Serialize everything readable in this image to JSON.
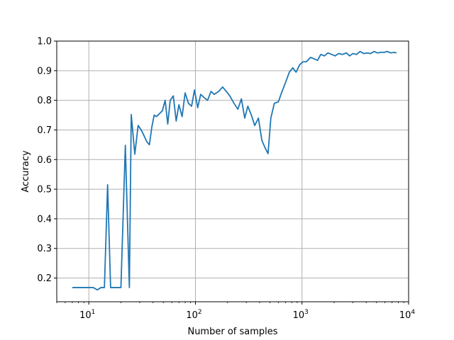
{
  "chart_data": {
    "type": "line",
    "xlabel": "Number of samples",
    "ylabel": "Accuracy",
    "xscale": "log",
    "xlim": [
      5,
      10000
    ],
    "ylim": [
      0.12,
      1.0
    ],
    "grid": true,
    "x_ticks": [
      {
        "value": 10,
        "base": "10",
        "exp": "1"
      },
      {
        "value": 100,
        "base": "10",
        "exp": "2"
      },
      {
        "value": 1000,
        "base": "10",
        "exp": "3"
      },
      {
        "value": 10000,
        "base": "10",
        "exp": "4"
      }
    ],
    "y_ticks": [
      "0.2",
      "0.3",
      "0.4",
      "0.5",
      "0.6",
      "0.7",
      "0.8",
      "0.9",
      "1.0"
    ],
    "series": [
      {
        "color": "#1f77b4",
        "points": [
          [
            7,
            0.168
          ],
          [
            8,
            0.168
          ],
          [
            9,
            0.168
          ],
          [
            10,
            0.168
          ],
          [
            11,
            0.168
          ],
          [
            12,
            0.16
          ],
          [
            13,
            0.168
          ],
          [
            14,
            0.168
          ],
          [
            15,
            0.515
          ],
          [
            16,
            0.168
          ],
          [
            17,
            0.168
          ],
          [
            18,
            0.168
          ],
          [
            19,
            0.168
          ],
          [
            20,
            0.168
          ],
          [
            22,
            0.648
          ],
          [
            24,
            0.168
          ],
          [
            25,
            0.752
          ],
          [
            27,
            0.618
          ],
          [
            29,
            0.715
          ],
          [
            31,
            0.7
          ],
          [
            33,
            0.68
          ],
          [
            35,
            0.66
          ],
          [
            37,
            0.65
          ],
          [
            39,
            0.71
          ],
          [
            41,
            0.75
          ],
          [
            43,
            0.745
          ],
          [
            46,
            0.755
          ],
          [
            49,
            0.765
          ],
          [
            52,
            0.8
          ],
          [
            55,
            0.72
          ],
          [
            58,
            0.8
          ],
          [
            62,
            0.815
          ],
          [
            66,
            0.73
          ],
          [
            70,
            0.785
          ],
          [
            75,
            0.745
          ],
          [
            80,
            0.825
          ],
          [
            86,
            0.79
          ],
          [
            92,
            0.78
          ],
          [
            98,
            0.835
          ],
          [
            105,
            0.775
          ],
          [
            112,
            0.82
          ],
          [
            120,
            0.81
          ],
          [
            130,
            0.8
          ],
          [
            140,
            0.83
          ],
          [
            150,
            0.82
          ],
          [
            165,
            0.83
          ],
          [
            180,
            0.845
          ],
          [
            195,
            0.83
          ],
          [
            210,
            0.815
          ],
          [
            230,
            0.79
          ],
          [
            250,
            0.77
          ],
          [
            270,
            0.805
          ],
          [
            290,
            0.74
          ],
          [
            310,
            0.78
          ],
          [
            335,
            0.75
          ],
          [
            360,
            0.715
          ],
          [
            390,
            0.74
          ],
          [
            420,
            0.665
          ],
          [
            450,
            0.64
          ],
          [
            480,
            0.62
          ],
          [
            510,
            0.74
          ],
          [
            550,
            0.79
          ],
          [
            600,
            0.795
          ],
          [
            650,
            0.83
          ],
          [
            700,
            0.86
          ],
          [
            760,
            0.895
          ],
          [
            820,
            0.91
          ],
          [
            880,
            0.895
          ],
          [
            950,
            0.92
          ],
          [
            1020,
            0.93
          ],
          [
            1100,
            0.93
          ],
          [
            1200,
            0.945
          ],
          [
            1300,
            0.94
          ],
          [
            1400,
            0.935
          ],
          [
            1500,
            0.955
          ],
          [
            1620,
            0.95
          ],
          [
            1750,
            0.96
          ],
          [
            1900,
            0.955
          ],
          [
            2050,
            0.95
          ],
          [
            2200,
            0.958
          ],
          [
            2400,
            0.955
          ],
          [
            2600,
            0.96
          ],
          [
            2800,
            0.95
          ],
          [
            3000,
            0.958
          ],
          [
            3250,
            0.955
          ],
          [
            3500,
            0.965
          ],
          [
            3800,
            0.958
          ],
          [
            4100,
            0.96
          ],
          [
            4400,
            0.958
          ],
          [
            4750,
            0.965
          ],
          [
            5100,
            0.96
          ],
          [
            5500,
            0.962
          ],
          [
            5900,
            0.962
          ],
          [
            6300,
            0.965
          ],
          [
            6800,
            0.96
          ],
          [
            7300,
            0.962
          ],
          [
            7700,
            0.96
          ]
        ]
      }
    ]
  }
}
